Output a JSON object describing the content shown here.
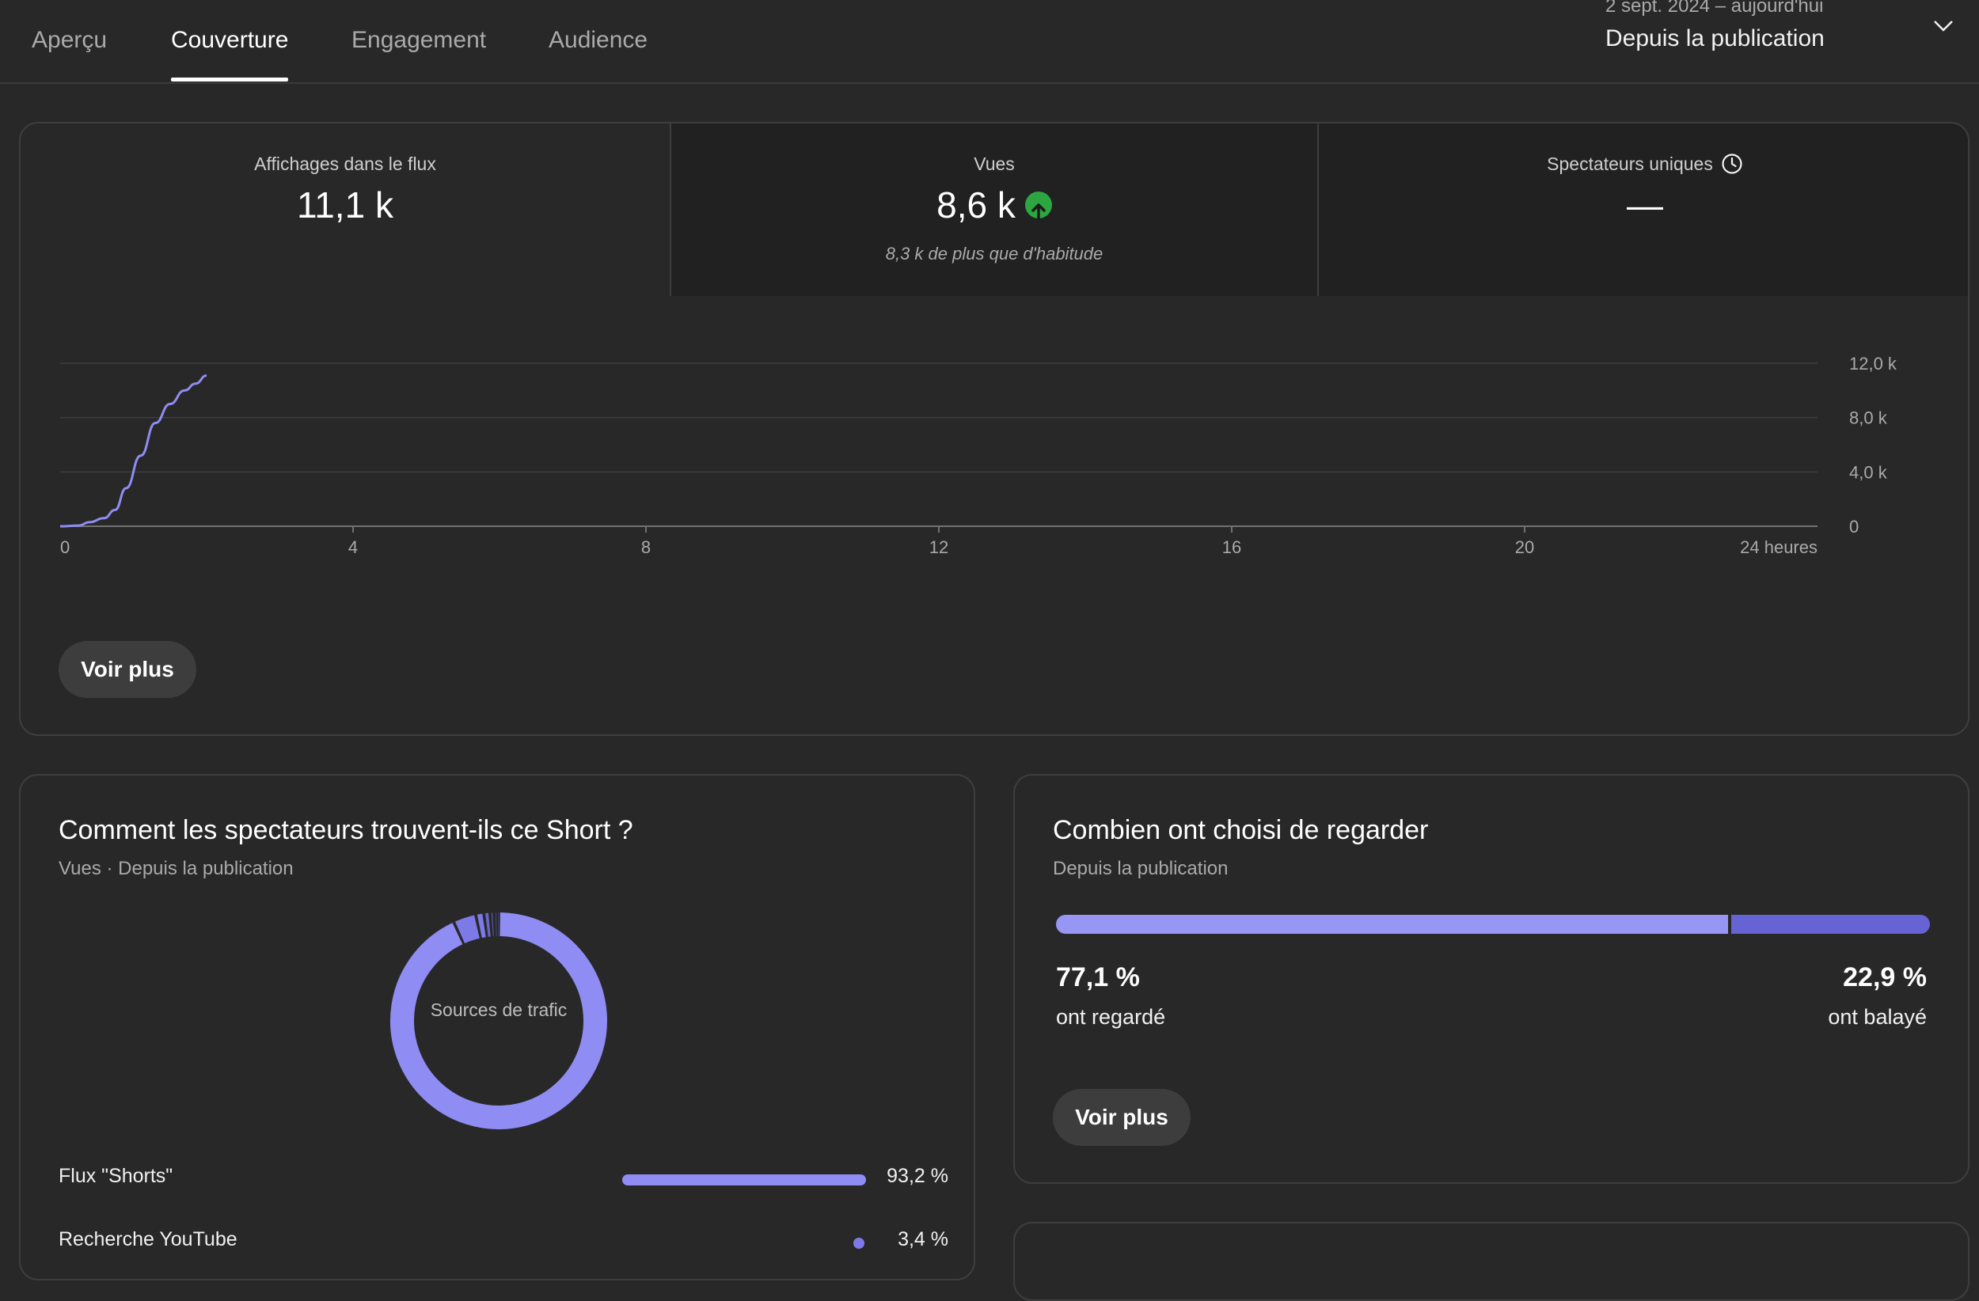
{
  "tabs": [
    {
      "label": "Aperçu"
    },
    {
      "label": "Couverture"
    },
    {
      "label": "Engagement"
    },
    {
      "label": "Audience"
    }
  ],
  "active_tab": "Couverture",
  "date_range": {
    "dates": "2 sept. 2024 – aujourd'hui",
    "label": "Depuis la publication",
    "icon": "chevron-down-icon"
  },
  "kpis": {
    "impressions": {
      "label": "Affichages dans le flux",
      "value": "11,1 k"
    },
    "views": {
      "label": "Vues",
      "value": "8,6 k",
      "note": "8,3 k de plus que d'habitude",
      "trend_icon": "arrow-up-icon",
      "trend_color": "#2ba640"
    },
    "unique_viewers": {
      "label": "Spectateurs uniques",
      "value": "—",
      "info_icon": "clock-icon"
    }
  },
  "chart_data": {
    "type": "line",
    "x_label_unit": "24 heures",
    "x_ticks": [
      "0",
      "4",
      "8",
      "12",
      "16",
      "20",
      "24 heures"
    ],
    "x_tick_values": [
      0,
      4,
      8,
      12,
      16,
      20,
      24
    ],
    "y_ticks": [
      "0",
      "4,0 k",
      "8,0 k",
      "12,0 k"
    ],
    "y_tick_values": [
      0,
      4000,
      8000,
      12000
    ],
    "xlim": [
      0,
      24
    ],
    "ylim": [
      0,
      12000
    ],
    "series": [
      {
        "color": "#8f8cf3",
        "x": [
          0,
          0.25,
          0.4,
          0.6,
          0.75,
          0.9,
          1.1,
          1.3,
          1.5,
          1.7,
          1.85,
          2.0
        ],
        "y": [
          0,
          50,
          300,
          600,
          1200,
          2800,
          5200,
          7600,
          9000,
          10000,
          10500,
          11100
        ]
      }
    ],
    "grid": true,
    "legend": "none"
  },
  "reach_button": "Voir plus",
  "traffic": {
    "title": "Comment les spectateurs trouvent-ils ce Short ?",
    "subtitle": "Vues · Depuis la publication",
    "donut_label": "Sources de trafic",
    "sources": [
      {
        "name": "Flux \"Shorts\"",
        "pct": "93,2 %",
        "value": 93.2,
        "color": "#8f8cf3"
      },
      {
        "name": "Recherche YouTube",
        "pct": "3,4 %",
        "value": 3.4,
        "color": "#7d7ae8"
      }
    ],
    "donut_minor_segments": [
      1.2,
      0.9,
      0.6,
      0.4,
      0.3
    ],
    "donut_minor_colors": [
      "#7d7ae8",
      "#6a67c8",
      "#5a58a8",
      "#4d4b8f",
      "#45437d"
    ]
  },
  "choice": {
    "title": "Combien ont choisi de regarder",
    "subtitle": "Depuis la publication",
    "watched": {
      "pct": "77,1 %",
      "label": "ont regardé",
      "value": 77.1,
      "color": "#9896f5"
    },
    "swiped": {
      "pct": "22,9 %",
      "label": "ont balayé",
      "value": 22.9,
      "color": "#6663d4"
    },
    "button": "Voir plus"
  }
}
